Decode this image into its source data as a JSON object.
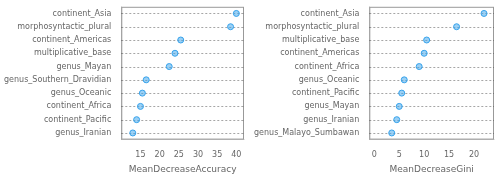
{
  "chart_data": [
    {
      "type": "dot",
      "orientation": "horizontal",
      "categories": [
        "continent_Asia",
        "morphosyntactic_plural",
        "continent_Americas",
        "multiplicative_base",
        "genus_Mayan",
        "genus_Southern_Dravidian",
        "genus_Oceanic",
        "continent_Africa",
        "continent_Pacific",
        "genus_Iranian"
      ],
      "values": [
        40.0,
        38.5,
        25.5,
        24.0,
        22.5,
        16.5,
        15.5,
        15.0,
        14.0,
        13.0
      ],
      "xlabel": "MeanDecreaseAccuracy",
      "xlim": [
        10,
        42
      ],
      "xticks": [
        15,
        20,
        25,
        30,
        35,
        40
      ]
    },
    {
      "type": "dot",
      "orientation": "horizontal",
      "categories": [
        "continent_Asia",
        "morphosyntactic_plural",
        "multiplicative_base",
        "continent_Americas",
        "continent_Africa",
        "genus_Oceanic",
        "continent_Pacific",
        "genus_Mayan",
        "genus_Iranian",
        "genus_Malayo_Sumbawan"
      ],
      "values": [
        22.0,
        16.5,
        10.5,
        10.0,
        9.0,
        6.0,
        5.5,
        5.0,
        4.5,
        3.5
      ],
      "xlabel": "MeanDecreaseGini",
      "xlim": [
        -1,
        24
      ],
      "xticks": [
        0,
        5,
        10,
        15,
        20
      ]
    }
  ]
}
